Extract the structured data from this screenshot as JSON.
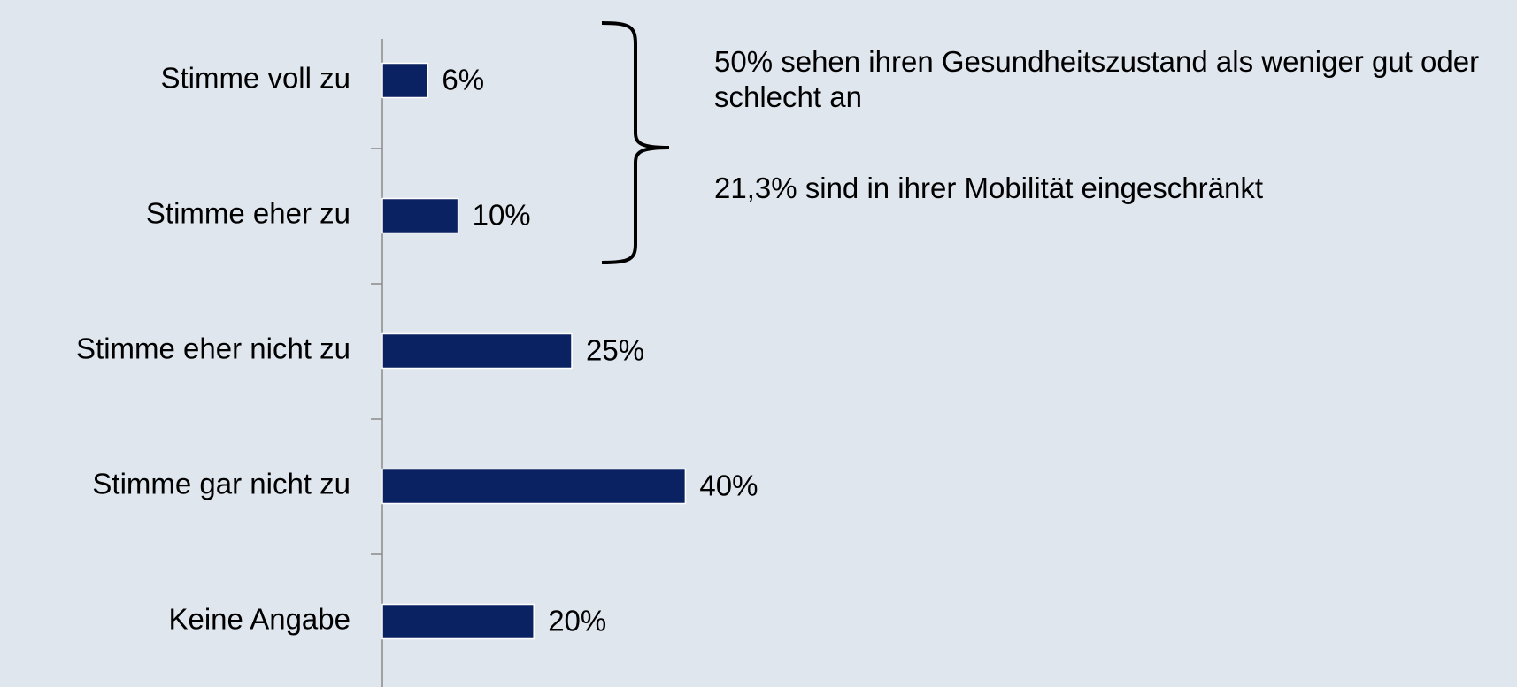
{
  "chart_data": {
    "type": "bar",
    "orientation": "horizontal",
    "categories": [
      "Stimme voll zu",
      "Stimme eher zu",
      "Stimme eher nicht zu",
      "Stimme gar nicht zu",
      "Keine Angabe"
    ],
    "values": [
      6,
      10,
      25,
      40,
      20
    ],
    "value_labels": [
      "6%",
      "10%",
      "25%",
      "40%",
      "20%"
    ],
    "color": "#0b2262",
    "annotations": [
      "50% sehen ihren Gesundheitszustand als weniger gut oder schlecht an",
      "21,3% sind in ihrer Mobilität eingeschränkt"
    ]
  }
}
